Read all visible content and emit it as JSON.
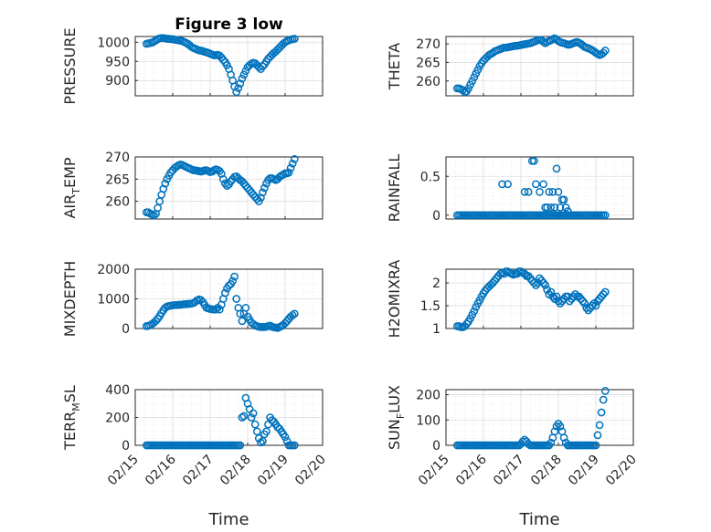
{
  "chart_data": [
    {
      "type": "scatter",
      "title": "Figure 3 low",
      "ylabel": "PRESSURE",
      "xlabel": "",
      "ylim": [
        860,
        1015
      ],
      "yticks": [
        900,
        950,
        1000
      ],
      "x": [
        0.0,
        0.05,
        0.1,
        0.15,
        0.2,
        0.25,
        0.3,
        0.35,
        0.4,
        0.45,
        0.5,
        0.55,
        0.6,
        0.65,
        0.7,
        0.75,
        0.8,
        0.85,
        0.9,
        0.95,
        1.0,
        1.05,
        1.1,
        1.15,
        1.2,
        1.25,
        1.3,
        1.35,
        1.4,
        1.45,
        1.5,
        1.55,
        1.6,
        1.65,
        1.7,
        1.75,
        1.8,
        1.85,
        1.9,
        1.95,
        2.0,
        2.05,
        2.1,
        2.15,
        2.2,
        2.25,
        2.3,
        2.35,
        2.4,
        2.45,
        2.5,
        2.55,
        2.6,
        2.65,
        2.7,
        2.75,
        2.8,
        2.85,
        2.9,
        2.95,
        3.0,
        3.05,
        3.1,
        3.15,
        3.2,
        3.25,
        3.3,
        3.35,
        3.4,
        3.45,
        3.5,
        3.55,
        3.6,
        3.65,
        3.7,
        3.75,
        3.8,
        3.85,
        3.9,
        3.95
      ],
      "y": [
        996,
        997,
        998,
        999,
        1002,
        1005,
        1008,
        1010,
        1011,
        1011,
        1010,
        1009,
        1009,
        1008,
        1008,
        1007,
        1006,
        1005,
        1004,
        1003,
        1001,
        999,
        996,
        992,
        988,
        985,
        983,
        981,
        979,
        978,
        977,
        975,
        974,
        972,
        970,
        968,
        966,
        966,
        967,
        965,
        960,
        954,
        948,
        940,
        930,
        915,
        900,
        884,
        870,
        880,
        892,
        905,
        915,
        925,
        935,
        940,
        944,
        946,
        945,
        940,
        935,
        930,
        937,
        942,
        950,
        957,
        962,
        967,
        972,
        976,
        981,
        986,
        991,
        996,
        1000,
        1003,
        1005,
        1007,
        1008,
        1009
      ],
      "color": "#0072bd"
    },
    {
      "type": "scatter",
      "title": "",
      "ylabel": "THETA",
      "xlabel": "",
      "ylim": [
        256,
        272
      ],
      "yticks": [
        260,
        265,
        270
      ],
      "x": [
        0.0,
        0.05,
        0.1,
        0.15,
        0.2,
        0.25,
        0.3,
        0.35,
        0.4,
        0.45,
        0.5,
        0.55,
        0.6,
        0.65,
        0.7,
        0.75,
        0.8,
        0.85,
        0.9,
        0.95,
        1.0,
        1.05,
        1.1,
        1.15,
        1.2,
        1.25,
        1.3,
        1.35,
        1.4,
        1.45,
        1.5,
        1.55,
        1.6,
        1.65,
        1.7,
        1.75,
        1.8,
        1.85,
        1.9,
        1.95,
        2.0,
        2.05,
        2.1,
        2.15,
        2.2,
        2.25,
        2.3,
        2.35,
        2.4,
        2.45,
        2.5,
        2.55,
        2.6,
        2.65,
        2.7,
        2.75,
        2.8,
        2.85,
        2.9,
        2.95,
        3.0,
        3.05,
        3.1,
        3.15,
        3.2,
        3.25,
        3.3,
        3.35,
        3.4,
        3.45,
        3.5,
        3.55,
        3.6,
        3.65,
        3.7,
        3.75,
        3.8,
        3.85,
        3.9,
        3.95
      ],
      "y": [
        258,
        258,
        257.8,
        257.5,
        257,
        257.2,
        258,
        259,
        260,
        261,
        262,
        263,
        264,
        264.8,
        265.5,
        266,
        266.5,
        267,
        267.3,
        267.6,
        268,
        268.2,
        268.4,
        268.6,
        268.8,
        269,
        269,
        269.1,
        269.2,
        269.3,
        269.4,
        269.5,
        269.5,
        269.6,
        269.7,
        269.8,
        269.9,
        270,
        270.1,
        270.2,
        270.4,
        270.6,
        270.8,
        271,
        271.1,
        271,
        270.6,
        270.2,
        270.5,
        270.8,
        271,
        271.3,
        271.5,
        271.2,
        270.8,
        270.5,
        270.3,
        270.2,
        270,
        269.8,
        269.8,
        270,
        270.2,
        270.4,
        270.5,
        270.3,
        270,
        269.6,
        269.2,
        269,
        268.8,
        268.6,
        268.3,
        268,
        267.6,
        267.3,
        267,
        267.2,
        267.6,
        268.2
      ],
      "color": "#0072bd"
    },
    {
      "type": "scatter",
      "title": "",
      "ylabel": "AIR_TEMP",
      "xlabel": "",
      "ylim": [
        256,
        270
      ],
      "yticks": [
        260,
        265,
        270
      ],
      "x": [
        0.0,
        0.05,
        0.1,
        0.15,
        0.2,
        0.25,
        0.3,
        0.35,
        0.4,
        0.45,
        0.5,
        0.55,
        0.6,
        0.65,
        0.7,
        0.75,
        0.8,
        0.85,
        0.9,
        0.95,
        1.0,
        1.05,
        1.1,
        1.15,
        1.2,
        1.25,
        1.3,
        1.35,
        1.4,
        1.45,
        1.5,
        1.55,
        1.6,
        1.65,
        1.7,
        1.75,
        1.8,
        1.85,
        1.9,
        1.95,
        2.0,
        2.05,
        2.1,
        2.15,
        2.2,
        2.25,
        2.3,
        2.35,
        2.4,
        2.45,
        2.5,
        2.55,
        2.6,
        2.65,
        2.7,
        2.75,
        2.8,
        2.85,
        2.9,
        2.95,
        3.0,
        3.05,
        3.1,
        3.15,
        3.2,
        3.25,
        3.3,
        3.35,
        3.4,
        3.45,
        3.5,
        3.55,
        3.6,
        3.65,
        3.7,
        3.75,
        3.8,
        3.85,
        3.9,
        3.95
      ],
      "y": [
        257.5,
        257.5,
        257.2,
        257,
        256.8,
        257.2,
        258.5,
        260,
        261.5,
        262.8,
        264,
        265,
        265.8,
        266.5,
        267,
        267.5,
        267.8,
        268.1,
        268.3,
        268.2,
        268,
        267.8,
        267.6,
        267.4,
        267.2,
        267,
        267,
        266.9,
        266.8,
        266.7,
        266.8,
        267,
        267,
        266.8,
        266.6,
        266.7,
        267,
        267.2,
        267.1,
        266.8,
        266.2,
        265,
        264,
        263.5,
        263.8,
        264.5,
        265,
        265.5,
        265.6,
        265.2,
        264.8,
        264.5,
        264,
        263.5,
        263,
        262.5,
        262,
        261.5,
        261,
        260.5,
        260,
        260.8,
        262,
        263,
        264,
        264.8,
        265.2,
        265.2,
        265,
        264.8,
        265,
        265.5,
        265.8,
        266,
        266.3,
        266.3,
        266.5,
        267.5,
        268.5,
        269.5
      ],
      "color": "#0072bd"
    },
    {
      "type": "scatter",
      "title": "",
      "ylabel": "RAINFALL",
      "xlabel": "",
      "ylim": [
        -0.05,
        0.75
      ],
      "yticks": [
        0,
        0.5
      ],
      "x": [
        0.0,
        0.05,
        0.1,
        0.15,
        0.2,
        0.25,
        0.3,
        0.35,
        0.4,
        0.45,
        0.5,
        0.55,
        0.6,
        0.65,
        0.7,
        0.75,
        0.8,
        0.85,
        0.9,
        0.95,
        1.0,
        1.05,
        1.1,
        1.15,
        1.2,
        1.25,
        1.3,
        1.35,
        1.4,
        1.45,
        1.5,
        1.55,
        1.6,
        1.65,
        1.7,
        1.75,
        1.8,
        1.85,
        1.9,
        1.95,
        2.0,
        2.05,
        2.1,
        2.15,
        2.2,
        2.25,
        2.3,
        2.35,
        2.4,
        2.45,
        2.5,
        2.55,
        2.6,
        2.65,
        2.7,
        2.75,
        2.8,
        2.85,
        2.9,
        2.95,
        3.0,
        3.05,
        3.1,
        3.15,
        3.2,
        3.25,
        3.3,
        3.35,
        3.4,
        3.45,
        3.5,
        3.55,
        3.6,
        3.65,
        3.7,
        3.75,
        3.8,
        3.85,
        3.9,
        3.95,
        1.2,
        1.35,
        1.8,
        1.9,
        2.0,
        2.05,
        2.1,
        2.2,
        2.3,
        2.35,
        2.4,
        2.45,
        2.5,
        2.55,
        2.6,
        2.65,
        2.7,
        2.75,
        2.8,
        2.85,
        2.9,
        2.95
      ],
      "y": [
        0,
        0,
        0,
        0,
        0,
        0,
        0,
        0,
        0,
        0,
        0,
        0,
        0,
        0,
        0,
        0,
        0,
        0,
        0,
        0,
        0,
        0,
        0,
        0,
        0,
        0,
        0,
        0,
        0,
        0,
        0,
        0,
        0,
        0,
        0,
        0,
        0,
        0,
        0,
        0,
        0,
        0,
        0,
        0,
        0,
        0,
        0,
        0,
        0,
        0,
        0,
        0,
        0,
        0,
        0,
        0,
        0,
        0,
        0,
        0,
        0,
        0,
        0,
        0,
        0,
        0,
        0,
        0,
        0,
        0,
        0,
        0,
        0,
        0,
        0,
        0,
        0,
        0,
        0,
        0,
        0.4,
        0.4,
        0.3,
        0.3,
        0.7,
        0.7,
        0.4,
        0.3,
        0.4,
        0.1,
        0.1,
        0.3,
        0.1,
        0.3,
        0.1,
        0.6,
        0.3,
        0.1,
        0.2,
        0.2,
        0.1,
        0.05
      ],
      "color": "#0072bd"
    },
    {
      "type": "scatter",
      "title": "",
      "ylabel": "MIXDEPTH",
      "xlabel": "",
      "ylim": [
        0,
        2000
      ],
      "yticks": [
        0,
        1000,
        2000
      ],
      "x": [
        0.0,
        0.05,
        0.1,
        0.15,
        0.2,
        0.25,
        0.3,
        0.35,
        0.4,
        0.45,
        0.5,
        0.55,
        0.6,
        0.65,
        0.7,
        0.75,
        0.8,
        0.85,
        0.9,
        0.95,
        1.0,
        1.05,
        1.1,
        1.15,
        1.2,
        1.25,
        1.3,
        1.35,
        1.4,
        1.45,
        1.5,
        1.55,
        1.6,
        1.65,
        1.7,
        1.75,
        1.8,
        1.85,
        1.9,
        1.95,
        2.0,
        2.05,
        2.1,
        2.15,
        2.2,
        2.25,
        2.3,
        2.35,
        2.4,
        2.45,
        2.5,
        2.55,
        2.6,
        2.65,
        2.7,
        2.75,
        2.8,
        2.85,
        2.9,
        2.95,
        3.0,
        3.05,
        3.1,
        3.15,
        3.2,
        3.25,
        3.3,
        3.35,
        3.4,
        3.45,
        3.5,
        3.55,
        3.6,
        3.65,
        3.7,
        3.75,
        3.8,
        3.85,
        3.9,
        3.95
      ],
      "y": [
        80,
        90,
        110,
        150,
        200,
        260,
        330,
        420,
        520,
        620,
        700,
        740,
        760,
        770,
        780,
        790,
        790,
        800,
        800,
        810,
        820,
        820,
        830,
        830,
        840,
        860,
        900,
        950,
        980,
        960,
        900,
        800,
        700,
        680,
        660,
        650,
        640,
        640,
        700,
        640,
        800,
        1000,
        1200,
        1350,
        1450,
        1500,
        1600,
        1750,
        1000,
        700,
        500,
        250,
        500,
        700,
        400,
        300,
        200,
        150,
        100,
        80,
        60,
        50,
        50,
        50,
        60,
        80,
        100,
        60,
        40,
        30,
        20,
        50,
        80,
        120,
        180,
        250,
        330,
        400,
        450,
        500
      ],
      "color": "#0072bd"
    },
    {
      "type": "scatter",
      "title": "",
      "ylabel": "H2OMIXRA",
      "xlabel": "",
      "ylim": [
        1,
        2.3
      ],
      "yticks": [
        1,
        1.5,
        2
      ],
      "x": [
        0.0,
        0.05,
        0.1,
        0.15,
        0.2,
        0.25,
        0.3,
        0.35,
        0.4,
        0.45,
        0.5,
        0.55,
        0.6,
        0.65,
        0.7,
        0.75,
        0.8,
        0.85,
        0.9,
        0.95,
        1.0,
        1.05,
        1.1,
        1.15,
        1.2,
        1.25,
        1.3,
        1.35,
        1.4,
        1.45,
        1.5,
        1.55,
        1.6,
        1.65,
        1.7,
        1.75,
        1.8,
        1.85,
        1.9,
        1.95,
        2.0,
        2.05,
        2.1,
        2.15,
        2.2,
        2.25,
        2.3,
        2.35,
        2.4,
        2.45,
        2.5,
        2.55,
        2.6,
        2.65,
        2.7,
        2.75,
        2.8,
        2.85,
        2.9,
        2.95,
        3.0,
        3.05,
        3.1,
        3.15,
        3.2,
        3.25,
        3.3,
        3.35,
        3.4,
        3.45,
        3.5,
        3.55,
        3.6,
        3.65,
        3.7,
        3.75,
        3.8,
        3.85,
        3.9,
        3.95
      ],
      "y": [
        1.05,
        1.05,
        1.03,
        1.03,
        1.05,
        1.1,
        1.15,
        1.22,
        1.3,
        1.38,
        1.47,
        1.55,
        1.62,
        1.7,
        1.77,
        1.83,
        1.88,
        1.92,
        1.96,
        2,
        2.05,
        2.1,
        2.15,
        2.2,
        2.22,
        2.2,
        2.25,
        2.25,
        2.22,
        2.2,
        2.18,
        2.2,
        2.2,
        2.25,
        2.25,
        2.22,
        2.2,
        2.15,
        2.15,
        2.1,
        2.05,
        2,
        1.95,
        2,
        2.1,
        2.05,
        2,
        1.95,
        1.85,
        1.75,
        1.8,
        1.7,
        1.65,
        1.7,
        1.6,
        1.55,
        1.6,
        1.65,
        1.7,
        1.7,
        1.6,
        1.65,
        1.7,
        1.75,
        1.7,
        1.7,
        1.65,
        1.6,
        1.55,
        1.45,
        1.4,
        1.45,
        1.5,
        1.55,
        1.5,
        1.6,
        1.65,
        1.7,
        1.75,
        1.8
      ],
      "color": "#0072bd"
    },
    {
      "type": "scatter",
      "title": "",
      "ylabel": "TERR_MSL",
      "xlabel": "Time",
      "xticklabels": [
        "02/15",
        "02/16",
        "02/17",
        "02/18",
        "02/19",
        "02/20"
      ],
      "ylim": [
        0,
        400
      ],
      "yticks": [
        0,
        200,
        400
      ],
      "x": [
        0.0,
        0.05,
        0.1,
        0.15,
        0.2,
        0.25,
        0.3,
        0.35,
        0.4,
        0.45,
        0.5,
        0.55,
        0.6,
        0.65,
        0.7,
        0.75,
        0.8,
        0.85,
        0.9,
        0.95,
        1.0,
        1.05,
        1.1,
        1.15,
        1.2,
        1.25,
        1.3,
        1.35,
        1.4,
        1.45,
        1.5,
        1.55,
        1.6,
        1.65,
        1.7,
        1.75,
        1.8,
        1.85,
        1.9,
        1.95,
        2.0,
        2.05,
        2.1,
        2.15,
        2.2,
        2.25,
        2.3,
        2.35,
        2.4,
        2.45,
        2.5,
        2.55,
        2.6,
        2.65,
        2.7,
        2.75,
        2.8,
        2.85,
        2.9,
        2.95,
        3.0,
        3.05,
        3.1,
        3.15,
        3.2,
        3.25,
        3.3,
        3.35,
        3.4,
        3.45,
        3.5,
        3.55,
        3.6,
        3.65,
        3.7,
        3.75,
        3.8,
        3.85,
        3.9,
        3.95
      ],
      "y": [
        0,
        0,
        0,
        0,
        0,
        0,
        0,
        0,
        0,
        0,
        0,
        0,
        0,
        0,
        0,
        0,
        0,
        0,
        0,
        0,
        0,
        0,
        0,
        0,
        0,
        0,
        0,
        0,
        0,
        0,
        0,
        0,
        0,
        0,
        0,
        0,
        0,
        0,
        0,
        0,
        0,
        0,
        0,
        0,
        0,
        0,
        0,
        0,
        0,
        0,
        0,
        200,
        210,
        340,
        300,
        260,
        200,
        230,
        150,
        100,
        50,
        20,
        30,
        80,
        100,
        150,
        200,
        180,
        170,
        150,
        130,
        120,
        100,
        80,
        60,
        30,
        0,
        0,
        0,
        0
      ],
      "color": "#0072bd"
    },
    {
      "type": "scatter",
      "title": "",
      "ylabel": "SUN_FLUX",
      "xlabel": "Time",
      "xticklabels": [
        "02/15",
        "02/16",
        "02/17",
        "02/18",
        "02/19",
        "02/20"
      ],
      "ylim": [
        0,
        220
      ],
      "yticks": [
        0,
        100,
        200
      ],
      "x": [
        0.0,
        0.05,
        0.1,
        0.15,
        0.2,
        0.25,
        0.3,
        0.35,
        0.4,
        0.45,
        0.5,
        0.55,
        0.6,
        0.65,
        0.7,
        0.75,
        0.8,
        0.85,
        0.9,
        0.95,
        1.0,
        1.05,
        1.1,
        1.15,
        1.2,
        1.25,
        1.3,
        1.35,
        1.4,
        1.45,
        1.5,
        1.55,
        1.6,
        1.65,
        1.7,
        1.75,
        1.8,
        1.85,
        1.9,
        1.95,
        2.0,
        2.05,
        2.1,
        2.15,
        2.2,
        2.25,
        2.3,
        2.35,
        2.4,
        2.45,
        2.5,
        2.55,
        2.6,
        2.65,
        2.7,
        2.75,
        2.8,
        2.85,
        2.9,
        2.95,
        3.0,
        3.05,
        3.1,
        3.15,
        3.2,
        3.25,
        3.3,
        3.35,
        3.4,
        3.45,
        3.5,
        3.55,
        3.6,
        3.65,
        3.7,
        3.75,
        3.8,
        3.85,
        3.9,
        3.95
      ],
      "y": [
        0,
        0,
        0,
        0,
        0,
        0,
        0,
        0,
        0,
        0,
        0,
        0,
        0,
        0,
        0,
        0,
        0,
        0,
        0,
        0,
        0,
        0,
        0,
        0,
        0,
        0,
        0,
        0,
        0,
        0,
        0,
        0,
        0,
        0,
        5,
        15,
        22,
        15,
        5,
        0,
        0,
        0,
        0,
        0,
        0,
        0,
        0,
        0,
        0,
        0,
        10,
        30,
        55,
        75,
        85,
        75,
        55,
        30,
        10,
        0,
        0,
        0,
        0,
        0,
        0,
        0,
        0,
        0,
        0,
        0,
        0,
        0,
        0,
        0,
        0,
        40,
        80,
        130,
        180,
        215
      ],
      "color": "#0072bd"
    }
  ]
}
